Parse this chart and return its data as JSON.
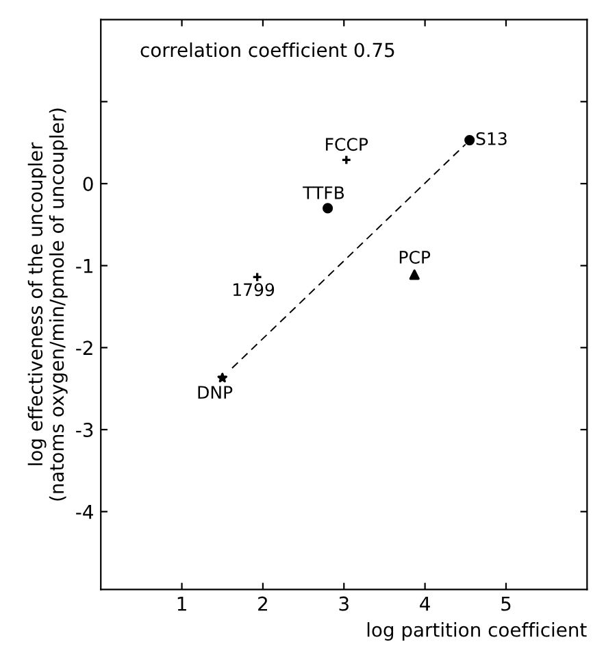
{
  "chart_data": {
    "type": "scatter",
    "xlabel": "log partition coefficient",
    "ylabel": "log effectiveness of the uncoupler\n(natoms oxygen/min/pmole of uncoupler)",
    "annotations": [
      "correlation coefficient 0.75"
    ],
    "xlim": [
      0,
      6
    ],
    "ylim": [
      -4.95,
      2
    ],
    "xticks": [
      1,
      2,
      3,
      4,
      5
    ],
    "yticks": [
      {
        "value": -4,
        "label": "-4"
      },
      {
        "value": -3,
        "label": "-3"
      },
      {
        "value": -2,
        "label": "-2"
      },
      {
        "value": -1,
        "label": "-1"
      },
      0,
      {
        "value": 1,
        "label": null
      }
    ],
    "grid": false,
    "legend": false,
    "series": [
      {
        "name": "DNP",
        "color": "#000000",
        "marker": "star",
        "x": [
          1.5
        ],
        "values": [
          -2.37
        ]
      },
      {
        "name": "1799",
        "color": "#000000",
        "marker": "cross",
        "x": [
          1.93
        ],
        "values": [
          -1.14
        ]
      },
      {
        "name": "TTFB",
        "color": "#000000",
        "marker": "circle",
        "x": [
          2.8
        ],
        "values": [
          -0.3
        ]
      },
      {
        "name": "FCCP",
        "color": "#000000",
        "marker": "cross",
        "x": [
          3.03
        ],
        "values": [
          0.29
        ]
      },
      {
        "name": "PCP",
        "color": "#000000",
        "marker": "triangle",
        "x": [
          3.87
        ],
        "values": [
          -1.11
        ]
      },
      {
        "name": "S13",
        "color": "#000000",
        "marker": "circle",
        "x": [
          4.55
        ],
        "values": [
          0.53
        ]
      },
      {
        "type": "line",
        "color": "#000000",
        "marker": "none",
        "line_style": "dashed",
        "x": [
          1.62,
          4.5
        ],
        "values": [
          -2.25,
          0.48
        ]
      }
    ]
  }
}
